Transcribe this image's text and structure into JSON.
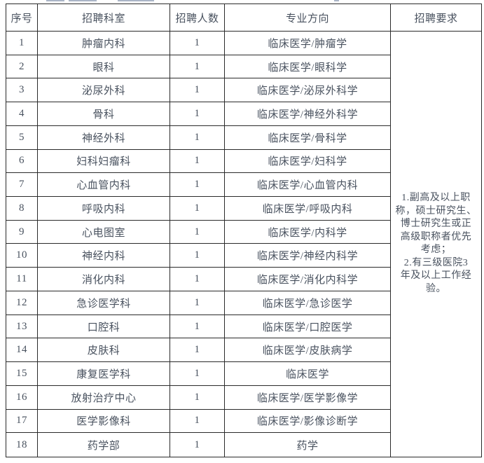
{
  "colors": {
    "text": "#49525f",
    "border": "#2a2a2a",
    "background": "#ffffff",
    "artifact": "#8e9cb4"
  },
  "table": {
    "headers": [
      "序号",
      "招聘科室",
      "招聘人数",
      "专业方向",
      "招聘要求"
    ],
    "rows": [
      {
        "no": "1",
        "dept": "肿瘤内科",
        "count": "1",
        "major": "临床医学/肿瘤学"
      },
      {
        "no": "2",
        "dept": "眼科",
        "count": "1",
        "major": "临床医学/眼科学"
      },
      {
        "no": "3",
        "dept": "泌尿外科",
        "count": "1",
        "major": "临床医学/泌尿外科学"
      },
      {
        "no": "4",
        "dept": "骨科",
        "count": "1",
        "major": "临床医学/神经外科学"
      },
      {
        "no": "5",
        "dept": "神经外科",
        "count": "1",
        "major": "临床医学/骨科学"
      },
      {
        "no": "6",
        "dept": "妇科妇瘤科",
        "count": "1",
        "major": "临床医学/妇科学"
      },
      {
        "no": "7",
        "dept": "心血管内科",
        "count": "1",
        "major": "临床医学/心血管内科"
      },
      {
        "no": "8",
        "dept": "呼吸内科",
        "count": "1",
        "major": "临床医学/呼吸内科"
      },
      {
        "no": "9",
        "dept": "心电图室",
        "count": "1",
        "major": "临床医学/内科学"
      },
      {
        "no": "10",
        "dept": "神经内科",
        "count": "1",
        "major": "临床医学/神经内科学"
      },
      {
        "no": "11",
        "dept": "消化内科",
        "count": "1",
        "major": "临床医学/消化内科学"
      },
      {
        "no": "12",
        "dept": "急诊医学科",
        "count": "1",
        "major": "临床医学/急诊医学"
      },
      {
        "no": "13",
        "dept": "口腔科",
        "count": "1",
        "major": "临床医学/口腔医学"
      },
      {
        "no": "14",
        "dept": "皮肤科",
        "count": "1",
        "major": "临床医学/皮肤病学"
      },
      {
        "no": "15",
        "dept": "康复医学科",
        "count": "1",
        "major": "临床医学"
      },
      {
        "no": "16",
        "dept": "放射治疗中心",
        "count": "1",
        "major": "临床医学/医学影像学"
      },
      {
        "no": "17",
        "dept": "医学影像科",
        "count": "1",
        "major": "临床医学/影像诊断学"
      },
      {
        "no": "18",
        "dept": "药学部",
        "count": "1",
        "major": "药学"
      }
    ],
    "requirements": {
      "full_text": "1.副高及以上职称，硕士研究生、博士研究生或正高级职称者优先考虑；2.有三级医院3年及以上工作经验。",
      "lines": [
        "1.副高及以上职",
        "称，硕士研究生、",
        "博士研究生或正",
        "高级职称者优先",
        "考虑；",
        "2.有三级医院3",
        "年及以上工作经",
        "验。"
      ]
    }
  }
}
